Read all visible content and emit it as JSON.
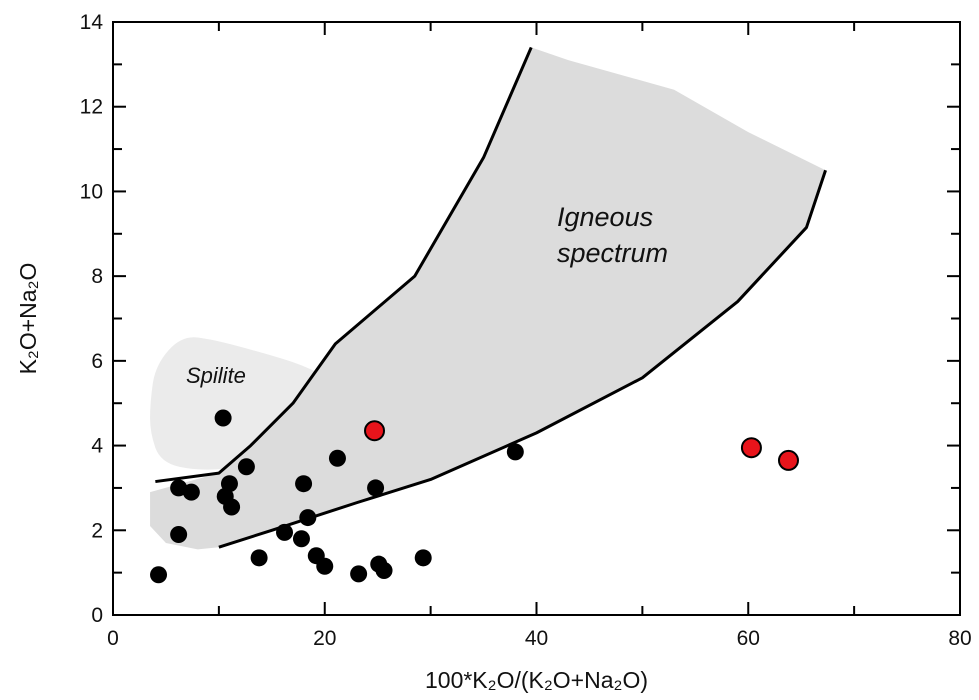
{
  "chart_data": {
    "type": "scatter",
    "title": "",
    "xlabel": "100*K₂O/(K₂O+Na₂O)",
    "ylabel": "K₂O+Na₂O",
    "xlim": [
      0,
      80
    ],
    "ylim": [
      0,
      14
    ],
    "xticks": [
      0,
      20,
      40,
      60,
      80
    ],
    "yticks": [
      0,
      2,
      4,
      6,
      8,
      10,
      12,
      14
    ],
    "grid": false,
    "legend": "none",
    "colors": {
      "black_points": "#000000",
      "red_points": "#e8141b",
      "igneous_region": "#dcdcdc",
      "spilite_region": "#ebebeb",
      "boundary": "#000000"
    },
    "fields": [
      {
        "name": "Igneous spectrum",
        "upper_boundary": [
          [
            4,
            3.15
          ],
          [
            10,
            3.35
          ],
          [
            13,
            4.0
          ],
          [
            17,
            5.0
          ],
          [
            21,
            6.4
          ],
          [
            28.5,
            8.0
          ],
          [
            35,
            10.8
          ],
          [
            39.5,
            13.4
          ]
        ],
        "lower_boundary": [
          [
            10,
            1.6
          ],
          [
            15,
            2.0
          ],
          [
            23,
            2.65
          ],
          [
            30,
            3.2
          ],
          [
            40,
            4.3
          ],
          [
            50,
            5.6
          ],
          [
            59,
            7.4
          ],
          [
            65.5,
            9.15
          ],
          [
            67.3,
            10.5
          ]
        ],
        "shaded_outline": [
          [
            3.5,
            2.9
          ],
          [
            10,
            3.35
          ],
          [
            13,
            4.0
          ],
          [
            17,
            5.0
          ],
          [
            21,
            6.4
          ],
          [
            28.5,
            8.0
          ],
          [
            35,
            10.8
          ],
          [
            39.5,
            13.4
          ],
          [
            43,
            13.1
          ],
          [
            53,
            12.4
          ],
          [
            60,
            11.4
          ],
          [
            67.3,
            10.5
          ],
          [
            65.5,
            9.15
          ],
          [
            59,
            7.4
          ],
          [
            50,
            5.6
          ],
          [
            40,
            4.3
          ],
          [
            30,
            3.2
          ],
          [
            23,
            2.65
          ],
          [
            15,
            2.0
          ],
          [
            10,
            1.6
          ],
          [
            8,
            1.55
          ],
          [
            5,
            1.7
          ],
          [
            3.5,
            2.1
          ]
        ],
        "label": [
          "Igneous",
          "spectrum"
        ]
      },
      {
        "name": "Spilite",
        "outline": [
          [
            3.5,
            5.0
          ],
          [
            4.0,
            5.9
          ],
          [
            6.5,
            6.6
          ],
          [
            9.5,
            6.5
          ],
          [
            14,
            6.2
          ],
          [
            18,
            5.9
          ],
          [
            21,
            5.5
          ],
          [
            22.5,
            5.0
          ],
          [
            21.5,
            4.3
          ],
          [
            18,
            3.8
          ],
          [
            13,
            3.5
          ],
          [
            8,
            3.4
          ],
          [
            4.5,
            3.6
          ],
          [
            3.5,
            4.3
          ]
        ],
        "label": "Spilite"
      }
    ],
    "series": [
      {
        "color": "#000000",
        "points": [
          [
            4.3,
            0.95
          ],
          [
            6.2,
            3.0
          ],
          [
            7.4,
            2.9
          ],
          [
            6.2,
            1.9
          ],
          [
            10.4,
            4.65
          ],
          [
            10.6,
            2.8
          ],
          [
            11.0,
            3.1
          ],
          [
            11.2,
            2.55
          ],
          [
            12.6,
            3.5
          ],
          [
            13.8,
            1.35
          ],
          [
            16.2,
            1.95
          ],
          [
            17.8,
            1.8
          ],
          [
            18.0,
            3.1
          ],
          [
            18.4,
            2.3
          ],
          [
            19.2,
            1.4
          ],
          [
            20.0,
            1.15
          ],
          [
            21.2,
            3.7
          ],
          [
            23.2,
            0.97
          ],
          [
            24.8,
            3.0
          ],
          [
            25.1,
            1.2
          ],
          [
            25.6,
            1.05
          ],
          [
            29.3,
            1.35
          ],
          [
            38.0,
            3.85
          ]
        ]
      },
      {
        "color": "#e8141b",
        "points": [
          [
            24.7,
            4.35
          ],
          [
            60.3,
            3.95
          ],
          [
            63.8,
            3.65
          ]
        ]
      }
    ]
  }
}
